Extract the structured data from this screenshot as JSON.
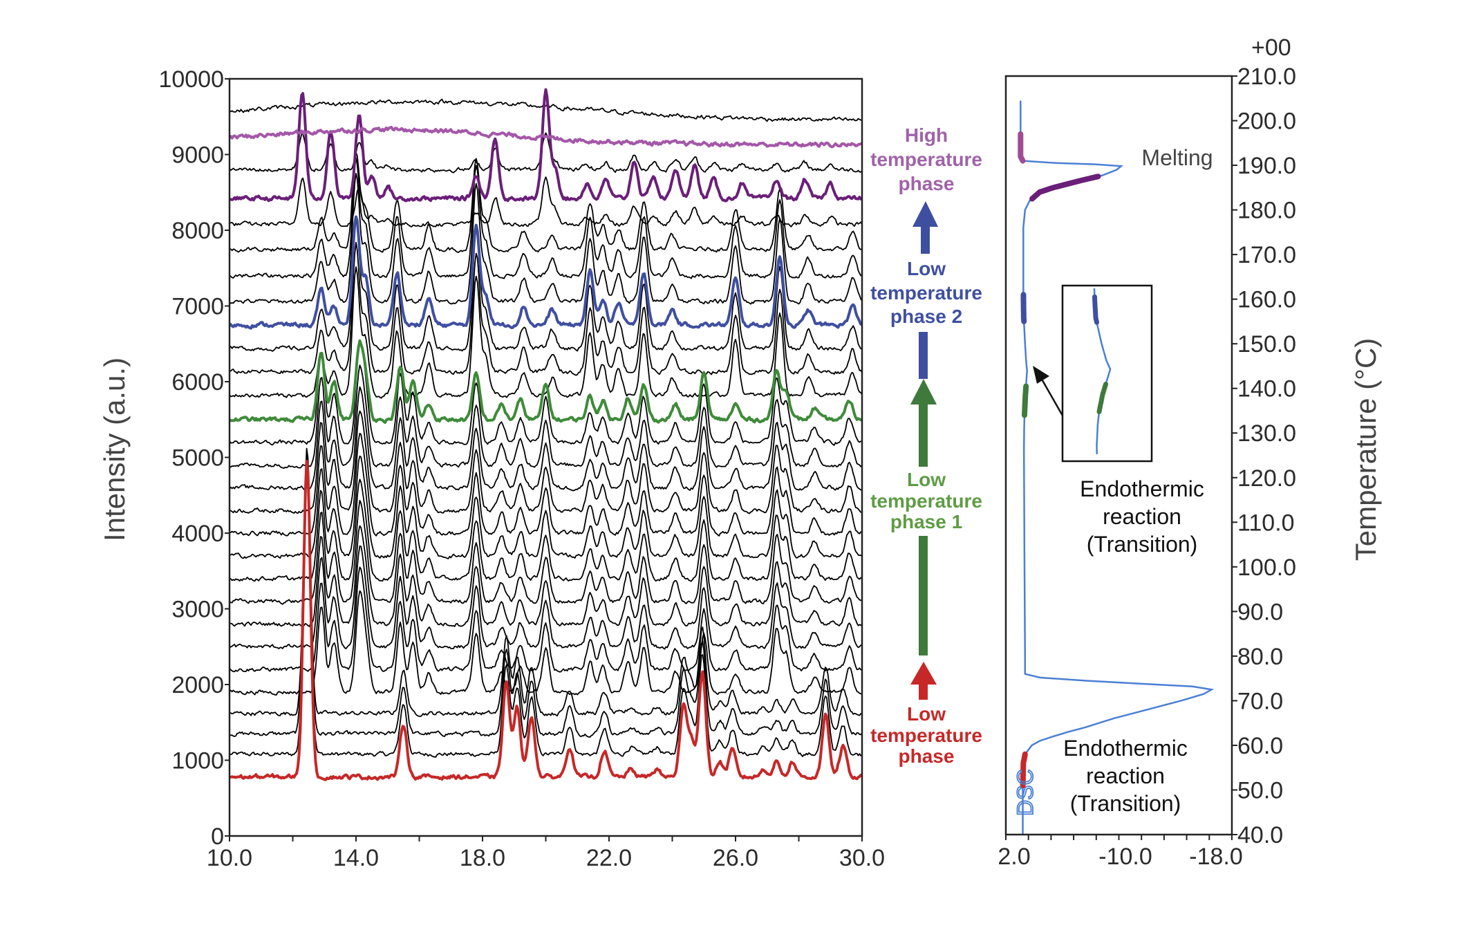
{
  "chart_data": [
    {
      "type": "line",
      "panel": "xrd",
      "xlabel": "",
      "ylabel": "Intensity (a.u.)",
      "xlim": [
        10.0,
        30.0
      ],
      "ylim": [
        0,
        10000
      ],
      "x_tick_labels": [
        "10.0",
        "14.0",
        "18.0",
        "22.0",
        "26.0",
        "30.0"
      ],
      "x_minor_tick_step": 2.0,
      "y_tick_labels": [
        "0",
        "1000",
        "2000",
        "3000",
        "4000",
        "5000",
        "6000",
        "7000",
        "8000",
        "9000",
        "10000"
      ],
      "grid": false,
      "colors": {
        "low": "#c62828",
        "phase1": "#3f8a3a",
        "phase2": "#3f4fa0",
        "high_purple": "#6a1f78",
        "high_lilac": "#a457a8",
        "intermediate": "#000000"
      },
      "patterns": {
        "low": [
          [
            12.45,
            4200
          ],
          [
            15.5,
            700
          ],
          [
            18.75,
            1250
          ],
          [
            19.1,
            900
          ],
          [
            19.55,
            800
          ],
          [
            20.75,
            400
          ],
          [
            21.85,
            350
          ],
          [
            22.7,
            100
          ],
          [
            23.5,
            100
          ],
          [
            24.35,
            900
          ],
          [
            24.6,
            500
          ],
          [
            24.95,
            1400
          ],
          [
            25.5,
            200
          ],
          [
            25.9,
            350
          ],
          [
            26.9,
            100
          ],
          [
            27.3,
            200
          ],
          [
            27.8,
            200
          ],
          [
            28.85,
            800
          ],
          [
            29.4,
            400
          ]
        ],
        "phase1": [
          [
            12.9,
            900
          ],
          [
            13.3,
            500
          ],
          [
            14.1,
            900
          ],
          [
            14.3,
            500
          ],
          [
            15.4,
            700
          ],
          [
            15.8,
            500
          ],
          [
            16.3,
            200
          ],
          [
            17.8,
            600
          ],
          [
            18.6,
            200
          ],
          [
            19.2,
            250
          ],
          [
            20.0,
            450
          ],
          [
            21.4,
            300
          ],
          [
            21.8,
            250
          ],
          [
            22.6,
            300
          ],
          [
            23.1,
            450
          ],
          [
            24.1,
            200
          ],
          [
            25.0,
            600
          ],
          [
            26.0,
            200
          ],
          [
            27.3,
            650
          ],
          [
            27.6,
            400
          ],
          [
            28.5,
            150
          ],
          [
            29.6,
            250
          ]
        ],
        "phase2": [
          [
            12.9,
            450
          ],
          [
            13.3,
            250
          ],
          [
            14.0,
            1400
          ],
          [
            14.3,
            600
          ],
          [
            15.3,
            700
          ],
          [
            16.3,
            350
          ],
          [
            17.8,
            1300
          ],
          [
            18.1,
            400
          ],
          [
            19.3,
            250
          ],
          [
            20.2,
            200
          ],
          [
            21.4,
            700
          ],
          [
            21.8,
            350
          ],
          [
            22.3,
            300
          ],
          [
            23.1,
            700
          ],
          [
            24.0,
            200
          ],
          [
            26.0,
            600
          ],
          [
            27.4,
            900
          ],
          [
            28.3,
            200
          ],
          [
            29.7,
            250
          ]
        ],
        "high": [
          [
            12.3,
            1400
          ],
          [
            13.2,
            900
          ],
          [
            14.1,
            1100
          ],
          [
            14.5,
            300
          ],
          [
            15.0,
            150
          ],
          [
            17.8,
            300
          ],
          [
            18.4,
            800
          ],
          [
            20.0,
            1400
          ],
          [
            20.3,
            400
          ],
          [
            21.3,
            200
          ],
          [
            21.9,
            250
          ],
          [
            22.8,
            500
          ],
          [
            23.4,
            300
          ],
          [
            24.1,
            400
          ],
          [
            24.7,
            450
          ],
          [
            25.3,
            250
          ],
          [
            26.2,
            200
          ],
          [
            27.3,
            250
          ],
          [
            28.2,
            250
          ],
          [
            29.0,
            200
          ]
        ],
        "melt": [
          [
            15.0,
            200,
            4.0
          ]
        ],
        "top": [
          [
            16.0,
            250,
            5.0
          ]
        ]
      },
      "series": [
        {
          "pattern": "low",
          "offset": 780,
          "scale": 1.0,
          "color_key": "low",
          "bold": true
        },
        {
          "pattern": "low",
          "offset": 1080,
          "scale": 0.95,
          "color_key": "intermediate"
        },
        {
          "pattern": "low",
          "offset": 1350,
          "scale": 0.9,
          "color_key": "intermediate"
        },
        {
          "pattern": "low",
          "offset": 1620,
          "scale": 0.8,
          "color_key": "intermediate"
        },
        {
          "pattern": "phase1",
          "offset": 1900,
          "scale": 1.3,
          "color_key": "intermediate"
        },
        {
          "pattern": "phase1",
          "offset": 2200,
          "scale": 1.3,
          "color_key": "intermediate"
        },
        {
          "pattern": "phase1",
          "offset": 2500,
          "scale": 1.3,
          "color_key": "intermediate"
        },
        {
          "pattern": "phase1",
          "offset": 2800,
          "scale": 1.3,
          "color_key": "intermediate"
        },
        {
          "pattern": "phase1",
          "offset": 3100,
          "scale": 1.3,
          "color_key": "intermediate"
        },
        {
          "pattern": "phase1",
          "offset": 3400,
          "scale": 1.3,
          "color_key": "intermediate"
        },
        {
          "pattern": "phase1",
          "offset": 3700,
          "scale": 1.3,
          "color_key": "intermediate"
        },
        {
          "pattern": "phase1",
          "offset": 4000,
          "scale": 1.3,
          "color_key": "intermediate"
        },
        {
          "pattern": "phase1",
          "offset": 4300,
          "scale": 1.3,
          "color_key": "intermediate"
        },
        {
          "pattern": "phase1",
          "offset": 4600,
          "scale": 1.3,
          "color_key": "intermediate"
        },
        {
          "pattern": "phase1",
          "offset": 4900,
          "scale": 1.3,
          "color_key": "intermediate"
        },
        {
          "pattern": "phase1",
          "offset": 5200,
          "scale": 1.3,
          "color_key": "intermediate"
        },
        {
          "pattern": "phase1",
          "offset": 5500,
          "scale": 1.0,
          "color_key": "phase1",
          "bold": true
        },
        {
          "pattern": "phase2",
          "offset": 5820,
          "scale": 1.2,
          "color_key": "intermediate"
        },
        {
          "pattern": "phase2",
          "offset": 6130,
          "scale": 1.2,
          "color_key": "intermediate"
        },
        {
          "pattern": "phase2",
          "offset": 6440,
          "scale": 1.2,
          "color_key": "intermediate"
        },
        {
          "pattern": "phase2",
          "offset": 6750,
          "scale": 1.0,
          "color_key": "phase2",
          "bold": true
        },
        {
          "pattern": "phase2",
          "offset": 7060,
          "scale": 1.2,
          "color_key": "intermediate"
        },
        {
          "pattern": "phase2",
          "offset": 7400,
          "scale": 1.1,
          "color_key": "intermediate"
        },
        {
          "pattern": "phase2",
          "offset": 7750,
          "scale": 0.9,
          "color_key": "intermediate"
        },
        {
          "pattern": "high",
          "offset": 8080,
          "scale": 0.45,
          "color_key": "intermediate"
        },
        {
          "pattern": "high",
          "offset": 8420,
          "scale": 1.0,
          "color_key": "high_purple",
          "bold": true
        },
        {
          "pattern": "high",
          "offset": 8800,
          "scale": 0.35,
          "color_key": "intermediate"
        },
        {
          "pattern": "melt",
          "offset": 9130,
          "scale": 1.0,
          "color_key": "high_lilac",
          "bold": true
        },
        {
          "pattern": "top",
          "offset": 9450,
          "scale": 1.0,
          "color_key": "intermediate"
        }
      ]
    },
    {
      "type": "line",
      "panel": "dsc",
      "xlabel": "",
      "ylabel": "Temperature (°C)",
      "xlim": [
        2.0,
        -18.0
      ],
      "ylim": [
        40.0,
        210.0
      ],
      "x_tick_labels": [
        "2.0",
        "-10.0",
        "-18.0"
      ],
      "x_minor_tick_step": 2.0,
      "y_tick_labels": [
        "40.0",
        "50.0",
        "60.0",
        "70.0",
        "80.0",
        "90.0",
        "100.0",
        "110.0",
        "120.0",
        "130.0",
        "140.0",
        "150.0",
        "160.0",
        "170.0",
        "180.0",
        "190.0",
        "200.0",
        "210.0"
      ],
      "axis_exponent_label": "+00",
      "curve_label": "DSC",
      "curve_color": "#4a7fd4",
      "points": [
        [
          40,
          0.5
        ],
        [
          50,
          0.5
        ],
        [
          56,
          0.45
        ],
        [
          58,
          0.3
        ],
        [
          60,
          -0.3
        ],
        [
          61,
          -1
        ],
        [
          62,
          -2.2
        ],
        [
          63,
          -3.5
        ],
        [
          64,
          -5
        ],
        [
          66,
          -7.5
        ],
        [
          68,
          -10.5
        ],
        [
          70,
          -13.5
        ],
        [
          71.5,
          -15.5
        ],
        [
          72.5,
          -16.2
        ],
        [
          73.2,
          -14.5
        ],
        [
          73.8,
          -10
        ],
        [
          74.5,
          -5
        ],
        [
          75.2,
          -1
        ],
        [
          76,
          0.3
        ],
        [
          80,
          0.3
        ],
        [
          100,
          0.35
        ],
        [
          126,
          0.4
        ],
        [
          131,
          0.38
        ],
        [
          134,
          0.35
        ],
        [
          138,
          0.28
        ],
        [
          141,
          0.2
        ],
        [
          144,
          0.12
        ],
        [
          146,
          0.2
        ],
        [
          150,
          0.3
        ],
        [
          154,
          0.38
        ],
        [
          156,
          0.42
        ],
        [
          160,
          0.44
        ],
        [
          163,
          0.45
        ],
        [
          170,
          0.45
        ],
        [
          176,
          0.45
        ],
        [
          180,
          0.3
        ],
        [
          182,
          -0.1
        ],
        [
          184,
          -1
        ],
        [
          185,
          -2.2
        ],
        [
          186.5,
          -4.5
        ],
        [
          187.7,
          -6.5
        ],
        [
          189,
          -7.8
        ],
        [
          189.8,
          -8.2
        ],
        [
          190.2,
          -6
        ],
        [
          190.5,
          -2.5
        ],
        [
          191,
          0.5
        ],
        [
          192,
          0.7
        ],
        [
          204.5,
          0.7
        ]
      ],
      "highlights": [
        {
          "from": 51,
          "to": 58,
          "color": "#c62828"
        },
        {
          "from": 134,
          "to": 140.5,
          "color": "#3f7a3c"
        },
        {
          "from": 155,
          "to": 161,
          "color": "#3f4fa0"
        },
        {
          "from": 182.5,
          "to": 187.7,
          "color": "#6a1f78"
        },
        {
          "from": 191,
          "to": 197,
          "color": "#a04c95"
        }
      ],
      "inset_range": [
        124,
        163
      ]
    }
  ],
  "annotations": {
    "phase_labels": {
      "high": {
        "lines": [
          "High",
          "temperature",
          "phase"
        ],
        "color": "#a062a8"
      },
      "low2": {
        "lines": [
          "Low",
          "temperature",
          "phase 2"
        ],
        "color": "#3f4fa0"
      },
      "low1": {
        "lines": [
          "Low",
          "temperature",
          "phase 1"
        ],
        "color": "#5e9c45"
      },
      "low": {
        "lines": [
          "Low",
          "temperature",
          "phase"
        ],
        "color": "#c62828"
      }
    },
    "arrow_colors": {
      "blue": "#3f4fa0",
      "green": "#3f7a3c",
      "red": "#c62828"
    },
    "melting": "Melting",
    "endo_upper": [
      "Endothermic",
      "reaction",
      "(Transition)"
    ],
    "endo_lower": [
      "Endothermic",
      "reaction",
      "(Transition)"
    ]
  }
}
